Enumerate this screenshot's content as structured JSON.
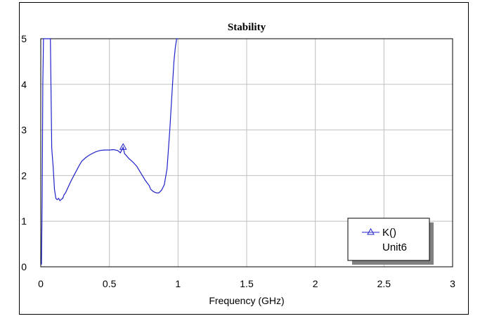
{
  "chart_data": {
    "type": "line",
    "title": "Stability",
    "xlabel": "Frequency (GHz)",
    "ylabel": "",
    "xlim": [
      0,
      3
    ],
    "ylim": [
      0,
      5
    ],
    "x_ticks": [
      0,
      0.5,
      1,
      1.5,
      2,
      2.5,
      3
    ],
    "x_tick_labels": [
      "0",
      "0.5",
      "1",
      "1.5",
      "2",
      "2.5",
      "3"
    ],
    "y_ticks": [
      0,
      1,
      2,
      3,
      4,
      5
    ],
    "y_tick_labels": [
      "0",
      "1",
      "2",
      "3",
      "4",
      "5"
    ],
    "grid": true,
    "legend_position": "bottom-right",
    "legend": {
      "label": "K()",
      "sublabel": "Unit6"
    },
    "colors": {
      "series": "#2222cc",
      "grid": "#c0c0c0",
      "axis": "#000000"
    },
    "series": [
      {
        "name": "K()",
        "marker": "triangle",
        "marker_at_x": [
          0.6
        ],
        "x": [
          0.005,
          0.01,
          0.015,
          0.02,
          0.03,
          0.04,
          0.05,
          0.06,
          0.07,
          0.08,
          0.09,
          0.1,
          0.11,
          0.12,
          0.13,
          0.14,
          0.15,
          0.16,
          0.17,
          0.18,
          0.2,
          0.22,
          0.25,
          0.28,
          0.3,
          0.33,
          0.36,
          0.4,
          0.43,
          0.46,
          0.5,
          0.53,
          0.56,
          0.58,
          0.6,
          0.61,
          0.62,
          0.64,
          0.67,
          0.7,
          0.73,
          0.76,
          0.79,
          0.8,
          0.82,
          0.84,
          0.86,
          0.88,
          0.9,
          0.92,
          0.94,
          0.96,
          0.97,
          0.98,
          0.99,
          1.0
        ],
        "y": [
          0.05,
          1.5,
          4.0,
          5.0,
          5.0,
          5.0,
          5.0,
          5.0,
          5.0,
          2.6,
          2.2,
          1.7,
          1.5,
          1.47,
          1.5,
          1.45,
          1.48,
          1.5,
          1.58,
          1.62,
          1.75,
          1.88,
          2.05,
          2.22,
          2.32,
          2.4,
          2.46,
          2.52,
          2.55,
          2.56,
          2.56,
          2.57,
          2.55,
          2.5,
          2.62,
          2.48,
          2.45,
          2.38,
          2.3,
          2.2,
          2.05,
          1.9,
          1.78,
          1.7,
          1.65,
          1.62,
          1.62,
          1.68,
          1.8,
          2.15,
          3.0,
          4.0,
          4.5,
          4.8,
          5.0,
          5.0
        ]
      }
    ]
  }
}
